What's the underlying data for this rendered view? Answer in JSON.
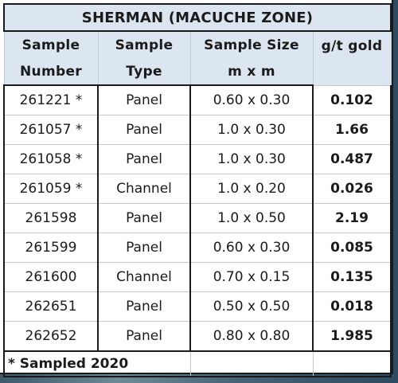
{
  "table": {
    "title": "SHERMAN (MACUCHE ZONE)",
    "headers": [
      [
        "Sample",
        "Number"
      ],
      [
        "Sample",
        "Type"
      ],
      [
        "Sample Size",
        "m x m"
      ],
      [
        "g/t gold",
        ""
      ]
    ],
    "rows": [
      {
        "number": "261221 *",
        "type": "Panel",
        "size": "0.60 x 0.30",
        "gold": "0.102"
      },
      {
        "number": "261057 *",
        "type": "Panel",
        "size": "1.0 x 0.30",
        "gold": "1.66"
      },
      {
        "number": "261058 *",
        "type": "Panel",
        "size": "1.0 x 0.30",
        "gold": "0.487"
      },
      {
        "number": "261059 *",
        "type": "Channel",
        "size": "1.0 x 0.20",
        "gold": "0.026"
      },
      {
        "number": "261598",
        "type": "Panel",
        "size": "1.0 x 0.50",
        "gold": "2.19"
      },
      {
        "number": "261599",
        "type": "Panel",
        "size": "0.60 x 0.30",
        "gold": "0.085"
      },
      {
        "number": "261600",
        "type": "Channel",
        "size": "0.70 x 0.15",
        "gold": "0.135"
      },
      {
        "number": "262651",
        "type": "Panel",
        "size": "0.50 x 0.50",
        "gold": "0.018"
      },
      {
        "number": "262652",
        "type": "Panel",
        "size": "0.80 x 0.80",
        "gold": "1.985"
      }
    ],
    "footnote": "* Sampled 2020"
  },
  "colors": {
    "header_fill": "#dce6f1",
    "border": "#1a1a1a",
    "gridline": "#c8c8c8"
  }
}
